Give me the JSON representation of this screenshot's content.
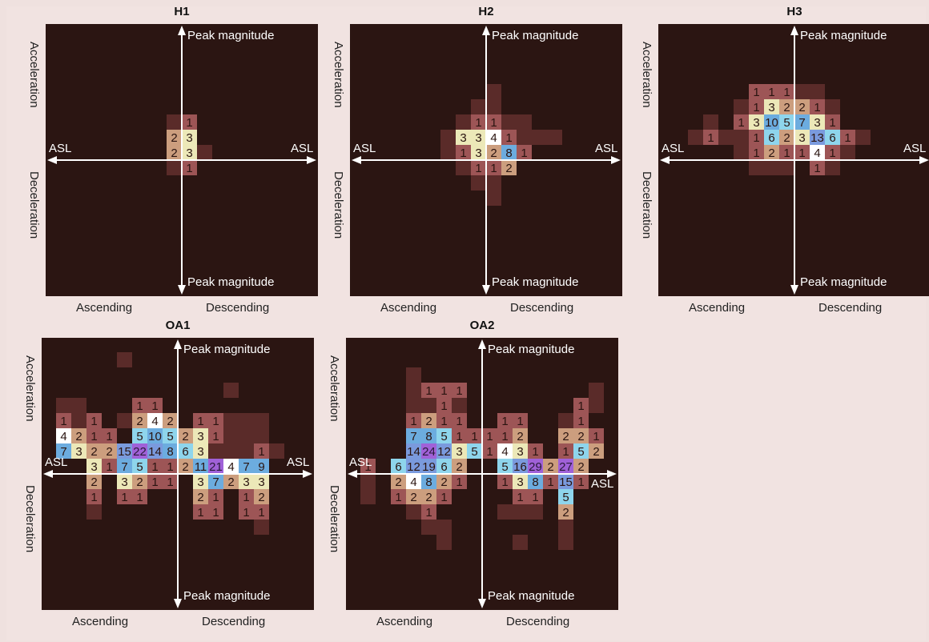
{
  "labels": {
    "peak_magnitude": "Peak magnitude",
    "asl": "ASL",
    "acceleration": "Acceleration",
    "deceleration": "Deceleration",
    "ascending": "Ascending",
    "descending": "Descending"
  },
  "colors": {
    "background": "#2b1512",
    "c0": "#5a2b29",
    "c1": "#9d5556",
    "c2": "#cc9e7e",
    "c3": "#ece8b8",
    "c4": "#ffffff",
    "c5": "#8ed5ec",
    "c7": "#6cacdf",
    "c12": "#7a9add",
    "c20": "#a061d8"
  },
  "chart_data": [
    {
      "type": "heatmap",
      "title": "H1",
      "grid": [
        18,
        18
      ],
      "center": [
        9,
        9
      ],
      "cells": [
        [
          -1,
          -3,
          0
        ],
        [
          0,
          -3,
          1
        ],
        [
          -1,
          -2,
          2
        ],
        [
          0,
          -2,
          3
        ],
        [
          -1,
          -1,
          2
        ],
        [
          0,
          -1,
          3
        ],
        [
          1,
          -1,
          0
        ],
        [
          -1,
          0,
          0
        ],
        [
          0,
          0,
          1
        ]
      ]
    },
    {
      "type": "heatmap",
      "title": "H2",
      "grid": [
        18,
        18
      ],
      "center": [
        9,
        9
      ],
      "cells": [
        [
          0,
          -5,
          0
        ],
        [
          -1,
          -4,
          0
        ],
        [
          0,
          -4,
          0
        ],
        [
          -2,
          -3,
          0
        ],
        [
          -1,
          -3,
          1
        ],
        [
          0,
          -3,
          1
        ],
        [
          1,
          -3,
          0
        ],
        [
          2,
          -3,
          0
        ],
        [
          -3,
          -2,
          0
        ],
        [
          -2,
          -2,
          3
        ],
        [
          -1,
          -2,
          3
        ],
        [
          0,
          -2,
          4
        ],
        [
          1,
          -2,
          1
        ],
        [
          2,
          -2,
          0
        ],
        [
          3,
          -2,
          0
        ],
        [
          4,
          -2,
          0
        ],
        [
          -3,
          -1,
          0
        ],
        [
          -2,
          -1,
          1
        ],
        [
          -1,
          -1,
          3
        ],
        [
          0,
          -1,
          2
        ],
        [
          1,
          -1,
          8
        ],
        [
          2,
          -1,
          1
        ],
        [
          -2,
          0,
          0
        ],
        [
          -1,
          0,
          1
        ],
        [
          0,
          0,
          1
        ],
        [
          1,
          0,
          2
        ],
        [
          -1,
          1,
          0
        ],
        [
          0,
          1,
          0
        ],
        [
          0,
          2,
          0
        ]
      ]
    },
    {
      "type": "heatmap",
      "title": "H3",
      "grid": [
        18,
        18
      ],
      "center": [
        9,
        9
      ],
      "cells": [
        [
          -3,
          -5,
          1
        ],
        [
          -2,
          -5,
          1
        ],
        [
          -1,
          -5,
          1
        ],
        [
          0,
          -5,
          0
        ],
        [
          1,
          -5,
          0
        ],
        [
          -4,
          -4,
          0
        ],
        [
          -3,
          -4,
          1
        ],
        [
          -2,
          -4,
          3
        ],
        [
          -1,
          -4,
          2
        ],
        [
          0,
          -4,
          2
        ],
        [
          1,
          -4,
          1
        ],
        [
          2,
          -4,
          0
        ],
        [
          -6,
          -3,
          0
        ],
        [
          -4,
          -3,
          1
        ],
        [
          -3,
          -3,
          3
        ],
        [
          -2,
          -3,
          10
        ],
        [
          -1,
          -3,
          5
        ],
        [
          0,
          -3,
          7
        ],
        [
          1,
          -3,
          3
        ],
        [
          2,
          -3,
          1
        ],
        [
          -7,
          -2,
          0
        ],
        [
          -6,
          -2,
          1
        ],
        [
          -5,
          -2,
          0
        ],
        [
          -4,
          -2,
          0
        ],
        [
          -3,
          -2,
          1
        ],
        [
          -2,
          -2,
          6
        ],
        [
          -1,
          -2,
          2
        ],
        [
          0,
          -2,
          3
        ],
        [
          1,
          -2,
          13
        ],
        [
          2,
          -2,
          6
        ],
        [
          3,
          -2,
          1
        ],
        [
          4,
          -2,
          0
        ],
        [
          -4,
          -1,
          0
        ],
        [
          -3,
          -1,
          1
        ],
        [
          -2,
          -1,
          2
        ],
        [
          -1,
          -1,
          1
        ],
        [
          0,
          -1,
          1
        ],
        [
          1,
          -1,
          4
        ],
        [
          2,
          -1,
          1
        ],
        [
          3,
          -1,
          0
        ],
        [
          -3,
          0,
          0
        ],
        [
          -2,
          0,
          0
        ],
        [
          -1,
          0,
          0
        ],
        [
          1,
          0,
          1
        ],
        [
          2,
          0,
          0
        ]
      ]
    },
    {
      "type": "heatmap",
      "title": "OA1",
      "grid": [
        18,
        18
      ],
      "center": [
        9,
        9
      ],
      "cells": [
        [
          -4,
          -8,
          0
        ],
        [
          3,
          -6,
          0
        ],
        [
          -8,
          -5,
          0
        ],
        [
          -7,
          -5,
          0
        ],
        [
          -3,
          -5,
          1
        ],
        [
          -2,
          -5,
          1
        ],
        [
          -8,
          -4,
          1
        ],
        [
          -7,
          -4,
          0
        ],
        [
          -6,
          -4,
          1
        ],
        [
          -4,
          -4,
          0
        ],
        [
          -3,
          -4,
          2
        ],
        [
          -2,
          -4,
          4
        ],
        [
          -1,
          -4,
          2
        ],
        [
          1,
          -4,
          1
        ],
        [
          2,
          -4,
          1
        ],
        [
          3,
          -4,
          0
        ],
        [
          4,
          -4,
          0
        ],
        [
          5,
          -4,
          0
        ],
        [
          -8,
          -3,
          4
        ],
        [
          -7,
          -3,
          2
        ],
        [
          -6,
          -3,
          1
        ],
        [
          -5,
          -3,
          1
        ],
        [
          -3,
          -3,
          5
        ],
        [
          -2,
          -3,
          10
        ],
        [
          -1,
          -3,
          5
        ],
        [
          0,
          -3,
          2
        ],
        [
          1,
          -3,
          3
        ],
        [
          2,
          -3,
          1
        ],
        [
          3,
          -3,
          0
        ],
        [
          4,
          -3,
          0
        ],
        [
          5,
          -3,
          0
        ],
        [
          -8,
          -2,
          7
        ],
        [
          -7,
          -2,
          3
        ],
        [
          -6,
          -2,
          2
        ],
        [
          -5,
          -2,
          2
        ],
        [
          -4,
          -2,
          15
        ],
        [
          -3,
          -2,
          22
        ],
        [
          -2,
          -2,
          14
        ],
        [
          -1,
          -2,
          8
        ],
        [
          0,
          -2,
          6
        ],
        [
          1,
          -2,
          3
        ],
        [
          2,
          -2,
          0
        ],
        [
          3,
          -2,
          0
        ],
        [
          4,
          -2,
          0
        ],
        [
          5,
          -2,
          1
        ],
        [
          6,
          -2,
          0
        ],
        [
          -6,
          -1,
          3
        ],
        [
          -5,
          -1,
          1
        ],
        [
          -4,
          -1,
          7
        ],
        [
          -3,
          -1,
          5
        ],
        [
          -2,
          -1,
          1
        ],
        [
          -1,
          -1,
          1
        ],
        [
          0,
          -1,
          2
        ],
        [
          1,
          -1,
          11
        ],
        [
          2,
          -1,
          21
        ],
        [
          3,
          -1,
          4
        ],
        [
          4,
          -1,
          7
        ],
        [
          5,
          -1,
          9
        ],
        [
          -6,
          0,
          2
        ],
        [
          -4,
          0,
          3
        ],
        [
          -3,
          0,
          2
        ],
        [
          -2,
          0,
          1
        ],
        [
          -1,
          0,
          1
        ],
        [
          1,
          0,
          3
        ],
        [
          2,
          0,
          7
        ],
        [
          3,
          0,
          2
        ],
        [
          4,
          0,
          3
        ],
        [
          5,
          0,
          3
        ],
        [
          -6,
          1,
          1
        ],
        [
          -4,
          1,
          1
        ],
        [
          -3,
          1,
          1
        ],
        [
          1,
          1,
          2
        ],
        [
          2,
          1,
          1
        ],
        [
          4,
          1,
          1
        ],
        [
          5,
          1,
          2
        ],
        [
          -6,
          2,
          0
        ],
        [
          1,
          2,
          1
        ],
        [
          2,
          2,
          1
        ],
        [
          4,
          2,
          1
        ],
        [
          5,
          2,
          1
        ],
        [
          5,
          3,
          0
        ]
      ]
    },
    {
      "type": "heatmap",
      "title": "OA2",
      "grid": [
        18,
        18
      ],
      "center": [
        9,
        9
      ],
      "cells": [
        [
          -5,
          -7,
          0
        ],
        [
          -5,
          -6,
          0
        ],
        [
          -4,
          -6,
          1
        ],
        [
          -3,
          -6,
          1
        ],
        [
          -2,
          -6,
          1
        ],
        [
          7,
          -6,
          0
        ],
        [
          -5,
          -5,
          0
        ],
        [
          -4,
          -5,
          0
        ],
        [
          -3,
          -5,
          1
        ],
        [
          -2,
          -5,
          0
        ],
        [
          6,
          -5,
          1
        ],
        [
          7,
          -5,
          0
        ],
        [
          -5,
          -4,
          1
        ],
        [
          -4,
          -4,
          2
        ],
        [
          -3,
          -4,
          1
        ],
        [
          -2,
          -4,
          1
        ],
        [
          1,
          -4,
          1
        ],
        [
          2,
          -4,
          1
        ],
        [
          5,
          -4,
          0
        ],
        [
          6,
          -4,
          1
        ],
        [
          -5,
          -3,
          7
        ],
        [
          -4,
          -3,
          8
        ],
        [
          -3,
          -3,
          5
        ],
        [
          -2,
          -3,
          1
        ],
        [
          -1,
          -3,
          1
        ],
        [
          0,
          -3,
          1
        ],
        [
          1,
          -3,
          1
        ],
        [
          2,
          -3,
          2
        ],
        [
          5,
          -3,
          2
        ],
        [
          6,
          -3,
          2
        ],
        [
          7,
          -3,
          1
        ],
        [
          -5,
          -2,
          14
        ],
        [
          -4,
          -2,
          24
        ],
        [
          -3,
          -2,
          12
        ],
        [
          -2,
          -2,
          3
        ],
        [
          -1,
          -2,
          5
        ],
        [
          0,
          -2,
          1
        ],
        [
          1,
          -2,
          4
        ],
        [
          2,
          -2,
          3
        ],
        [
          3,
          -2,
          1
        ],
        [
          5,
          -2,
          1
        ],
        [
          6,
          -2,
          5
        ],
        [
          7,
          -2,
          2
        ],
        [
          -8,
          -1,
          1
        ],
        [
          -6,
          -1,
          6
        ],
        [
          -5,
          -1,
          12
        ],
        [
          -4,
          -1,
          19
        ],
        [
          -3,
          -1,
          6
        ],
        [
          -2,
          -1,
          2
        ],
        [
          1,
          -1,
          5
        ],
        [
          2,
          -1,
          16
        ],
        [
          3,
          -1,
          29
        ],
        [
          4,
          -1,
          2
        ],
        [
          5,
          -1,
          27
        ],
        [
          6,
          -1,
          2
        ],
        [
          -8,
          0,
          0
        ],
        [
          -6,
          0,
          2
        ],
        [
          -5,
          0,
          4
        ],
        [
          -4,
          0,
          8
        ],
        [
          -3,
          0,
          2
        ],
        [
          -2,
          0,
          1
        ],
        [
          1,
          0,
          1
        ],
        [
          2,
          0,
          3
        ],
        [
          3,
          0,
          8
        ],
        [
          4,
          0,
          1
        ],
        [
          5,
          0,
          15
        ],
        [
          6,
          0,
          1
        ],
        [
          -8,
          1,
          0
        ],
        [
          -6,
          1,
          1
        ],
        [
          -5,
          1,
          2
        ],
        [
          -4,
          1,
          2
        ],
        [
          -3,
          1,
          1
        ],
        [
          2,
          1,
          1
        ],
        [
          3,
          1,
          1
        ],
        [
          5,
          1,
          5
        ],
        [
          -5,
          2,
          0
        ],
        [
          -4,
          2,
          1
        ],
        [
          1,
          2,
          0
        ],
        [
          2,
          2,
          0
        ],
        [
          3,
          2,
          0
        ],
        [
          5,
          2,
          2
        ],
        [
          -4,
          3,
          0
        ],
        [
          -3,
          3,
          0
        ],
        [
          5,
          3,
          0
        ],
        [
          -3,
          4,
          0
        ],
        [
          2,
          4,
          0
        ],
        [
          5,
          4,
          0
        ]
      ]
    }
  ]
}
